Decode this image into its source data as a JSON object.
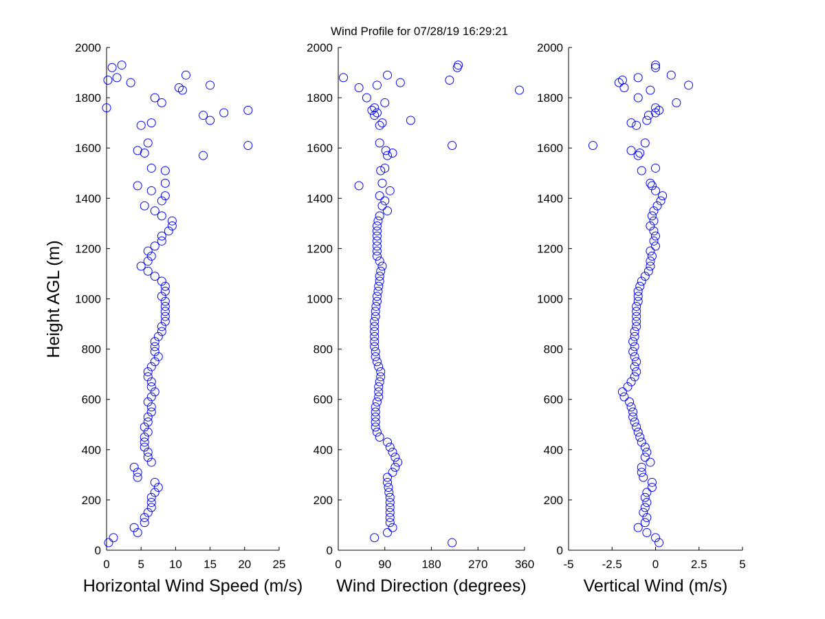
{
  "chart_data": [
    {
      "type": "scatter",
      "title": "Wind Profile for  07/28/19 16:29:21",
      "xlabel": "Horizontal Wind Speed (m/s)",
      "ylabel": "Height AGL (m)",
      "color": "#0000ff",
      "xlim": [
        0,
        25
      ],
      "xticks": [
        0,
        5,
        10,
        15,
        20,
        25
      ],
      "ylim": [
        0,
        2000
      ],
      "yticks": [
        0,
        200,
        400,
        600,
        800,
        1000,
        1200,
        1400,
        1600,
        1800,
        2000
      ],
      "x": [
        0.3,
        1,
        4.5,
        4,
        5.5,
        5.5,
        6,
        6.5,
        6.5,
        6.5,
        7,
        7.5,
        7,
        4.5,
        4.5,
        4,
        6.5,
        6,
        6,
        5.5,
        5.5,
        5.5,
        6,
        5.5,
        6,
        6,
        6.5,
        6.5,
        6,
        6.5,
        7,
        6.5,
        6.5,
        6,
        6,
        6.5,
        7,
        7.5,
        7,
        7,
        7,
        7.5,
        8,
        8,
        8.5,
        8.5,
        8.5,
        8.5,
        8.5,
        8,
        8.5,
        8.5,
        8,
        7,
        6,
        5,
        6,
        6.5,
        6,
        7,
        8,
        8,
        9,
        9.5,
        9.5,
        8,
        7,
        5.5,
        8,
        8.5,
        6.5,
        4.5,
        8.5,
        8.5,
        6.5,
        14,
        5.5,
        4.5,
        20.5,
        6,
        5,
        6.5,
        15,
        14,
        17,
        20.5,
        0,
        8,
        7,
        11,
        10.5,
        15,
        3.5,
        0.2,
        1.5,
        11.5,
        0.8,
        2.2
      ],
      "y": [
        30,
        50,
        70,
        90,
        110,
        130,
        150,
        170,
        190,
        210,
        230,
        250,
        270,
        290,
        310,
        330,
        350,
        370,
        390,
        410,
        430,
        450,
        470,
        490,
        510,
        530,
        550,
        570,
        590,
        610,
        630,
        650,
        670,
        690,
        710,
        730,
        750,
        770,
        790,
        810,
        830,
        850,
        870,
        890,
        910,
        930,
        950,
        970,
        990,
        1010,
        1030,
        1050,
        1070,
        1090,
        1110,
        1130,
        1150,
        1170,
        1190,
        1210,
        1230,
        1250,
        1270,
        1290,
        1310,
        1330,
        1350,
        1370,
        1390,
        1410,
        1430,
        1450,
        1460,
        1510,
        1520,
        1570,
        1580,
        1590,
        1610,
        1620,
        1690,
        1700,
        1710,
        1730,
        1740,
        1750,
        1760,
        1780,
        1800,
        1830,
        1840,
        1850,
        1860,
        1870,
        1880,
        1890,
        1920,
        1930
      ]
    },
    {
      "type": "scatter",
      "xlabel": "Wind Direction (degrees)",
      "color": "#0000ff",
      "xlim": [
        0,
        360
      ],
      "xticks": [
        0,
        90,
        180,
        270,
        360
      ],
      "ylim": [
        0,
        2000
      ],
      "yticks": [
        0,
        200,
        400,
        600,
        800,
        1000,
        1200,
        1400,
        1600,
        1800,
        2000
      ],
      "x": [
        220,
        70,
        95,
        105,
        100,
        100,
        100,
        100,
        100,
        100,
        98,
        97,
        95,
        95,
        105,
        110,
        115,
        110,
        105,
        100,
        95,
        80,
        75,
        72,
        72,
        72,
        72,
        72,
        75,
        78,
        78,
        78,
        80,
        82,
        82,
        78,
        75,
        72,
        72,
        70,
        70,
        70,
        70,
        70,
        70,
        72,
        72,
        73,
        75,
        75,
        77,
        78,
        80,
        80,
        82,
        85,
        80,
        75,
        75,
        75,
        75,
        75,
        75,
        75,
        77,
        80,
        95,
        85,
        90,
        80,
        100,
        40,
        85,
        82,
        90,
        95,
        105,
        92,
        220,
        80,
        80,
        85,
        140,
        70,
        75,
        65,
        70,
        90,
        55,
        350,
        40,
        75,
        120,
        215,
        10,
        95,
        230,
        232
      ],
      "y": [
        30,
        50,
        70,
        90,
        110,
        130,
        150,
        170,
        190,
        210,
        230,
        250,
        270,
        290,
        310,
        330,
        350,
        370,
        390,
        410,
        430,
        450,
        470,
        490,
        510,
        530,
        550,
        570,
        590,
        610,
        630,
        650,
        670,
        690,
        710,
        730,
        750,
        770,
        790,
        810,
        830,
        850,
        870,
        890,
        910,
        930,
        950,
        970,
        990,
        1010,
        1030,
        1050,
        1070,
        1090,
        1110,
        1130,
        1150,
        1170,
        1190,
        1210,
        1230,
        1250,
        1270,
        1290,
        1310,
        1330,
        1350,
        1370,
        1390,
        1410,
        1430,
        1450,
        1460,
        1510,
        1520,
        1570,
        1580,
        1590,
        1610,
        1620,
        1690,
        1700,
        1710,
        1730,
        1740,
        1750,
        1760,
        1780,
        1800,
        1830,
        1840,
        1850,
        1860,
        1870,
        1880,
        1890,
        1920,
        1930
      ]
    },
    {
      "type": "scatter",
      "xlabel": "Vertical Wind (m/s)",
      "color": "#0000ff",
      "xlim": [
        -5,
        5
      ],
      "xticks": [
        -5,
        -2.5,
        0,
        2.5,
        5
      ],
      "ylim": [
        0,
        2000
      ],
      "yticks": [
        0,
        200,
        400,
        600,
        800,
        1000,
        1200,
        1400,
        1600,
        1800,
        2000
      ],
      "x": [
        0.2,
        0,
        -0.5,
        -1,
        -0.6,
        -0.5,
        -0.7,
        -0.6,
        -0.5,
        -0.6,
        -0.5,
        -0.2,
        -0.2,
        -0.7,
        -0.8,
        -0.8,
        -0.3,
        -0.6,
        -0.5,
        -0.6,
        -0.8,
        -0.9,
        -1,
        -1.1,
        -1.2,
        -1.3,
        -1.3,
        -1.4,
        -1.5,
        -1.8,
        -1.9,
        -1.6,
        -1.4,
        -1.2,
        -1.1,
        -1.2,
        -1.1,
        -1.2,
        -1.3,
        -1.2,
        -1.3,
        -1.2,
        -1.2,
        -1.1,
        -1.1,
        -1.1,
        -1.1,
        -1.1,
        -1,
        -1,
        -1,
        -0.9,
        -0.8,
        -0.6,
        -0.4,
        -0.3,
        -0.3,
        -0.2,
        -0.3,
        0,
        -0.1,
        0,
        -0.1,
        -0.3,
        -0.1,
        -0.2,
        -0.1,
        0.1,
        0.3,
        0.4,
        0,
        -0.2,
        -0.3,
        -0.8,
        0,
        -1,
        -0.9,
        -1.4,
        -3.6,
        -0.6,
        -1.1,
        -1.4,
        -0.5,
        -0.4,
        0,
        0.2,
        0,
        1.2,
        -1,
        -0.3,
        -1.8,
        1.9,
        -2.1,
        -1.9,
        -1,
        0.9,
        0,
        0
      ],
      "y": [
        30,
        50,
        70,
        90,
        110,
        130,
        150,
        170,
        190,
        210,
        230,
        250,
        270,
        290,
        310,
        330,
        350,
        370,
        390,
        410,
        430,
        450,
        470,
        490,
        510,
        530,
        550,
        570,
        590,
        610,
        630,
        650,
        670,
        690,
        710,
        730,
        750,
        770,
        790,
        810,
        830,
        850,
        870,
        890,
        910,
        930,
        950,
        970,
        990,
        1010,
        1030,
        1050,
        1070,
        1090,
        1110,
        1130,
        1150,
        1170,
        1190,
        1210,
        1230,
        1250,
        1270,
        1290,
        1310,
        1330,
        1350,
        1370,
        1390,
        1410,
        1430,
        1450,
        1460,
        1510,
        1520,
        1570,
        1580,
        1590,
        1610,
        1620,
        1690,
        1700,
        1710,
        1730,
        1740,
        1750,
        1760,
        1780,
        1800,
        1830,
        1840,
        1850,
        1860,
        1870,
        1880,
        1890,
        1920,
        1930
      ]
    }
  ]
}
